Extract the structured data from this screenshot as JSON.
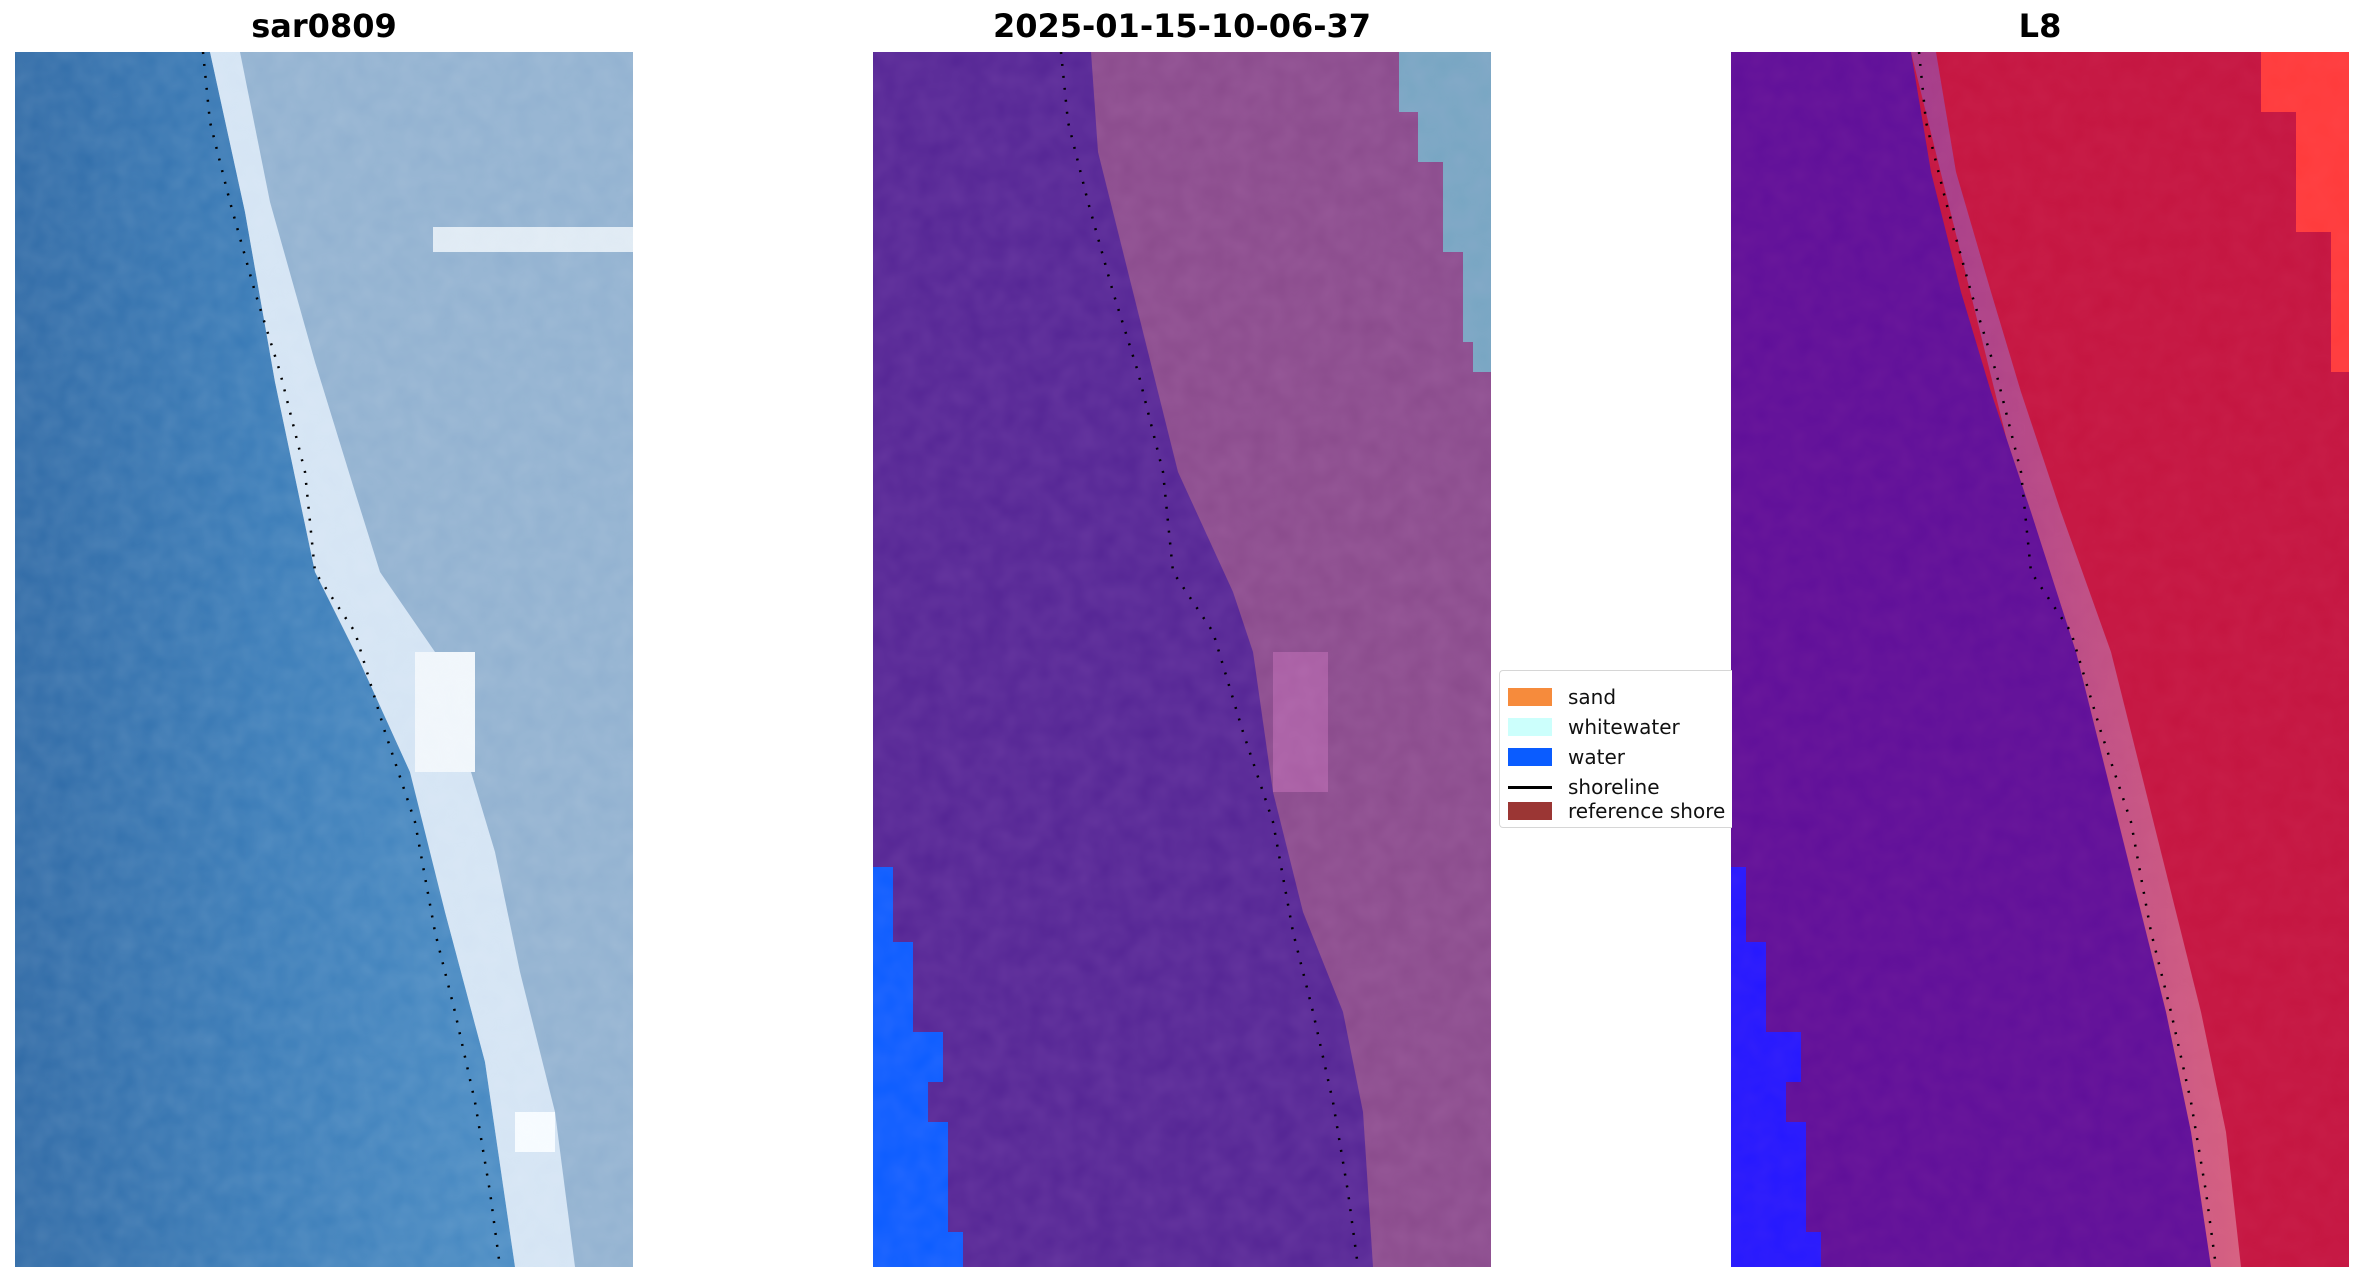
{
  "titles": {
    "rgb": "sar0809",
    "classified": "2025-01-15-10-06-37",
    "index": "L8"
  },
  "legend": {
    "items": [
      {
        "label": "sand",
        "color": "#f68b3c",
        "kind": "patch"
      },
      {
        "label": "whitewater",
        "color": "#ccfffc",
        "kind": "patch"
      },
      {
        "label": "water",
        "color": "#0a5cff",
        "kind": "patch"
      },
      {
        "label": "shoreline",
        "color": "#000000",
        "kind": "line"
      },
      {
        "label": "reference shore",
        "color": "#9b3634",
        "kind": "patch"
      }
    ]
  },
  "colors": {
    "rgb_water": "#3a79b4",
    "rgb_land": "#8fb0cf",
    "rgb_beach": "#cfe0f2",
    "class_sea": "#542594",
    "class_land": "#884a8a",
    "class_water": "#0a5cff",
    "class_teal": "#74a3c0",
    "index_sea": "#5e0e9a",
    "index_land": "#c3133a",
    "index_bright": "#ff2a2a",
    "index_water": "#2216ff",
    "shoreline": "#000000"
  }
}
